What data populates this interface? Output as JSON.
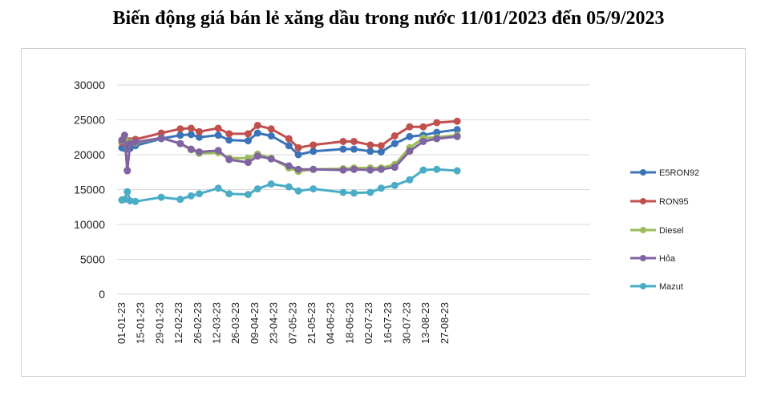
{
  "chart_data": {
    "type": "line",
    "title": "Biến động giá bán lẻ xăng dầu trong nước 11/01/2023 đến 05/9/2023",
    "xlabel": "",
    "ylabel": "",
    "ylim": [
      0,
      30000
    ],
    "yticks": [
      0,
      5000,
      10000,
      15000,
      20000,
      25000,
      30000
    ],
    "xticks": [
      "01-01-23",
      "15-01-23",
      "29-01-23",
      "12-02-23",
      "26-02-23",
      "12-03-23",
      "26-03-23",
      "09-04-23",
      "23-04-23",
      "07-05-23",
      "21-05-23",
      "04-06-23",
      "18-06-23",
      "02-07-23",
      "16-07-23",
      "30-07-23",
      "13-08-23",
      "27-08-23"
    ],
    "x": [
      "2023-01-01",
      "2023-01-03",
      "2023-01-05",
      "2023-01-07",
      "2023-01-11",
      "2023-01-30",
      "2023-02-13",
      "2023-02-21",
      "2023-02-27",
      "2023-03-13",
      "2023-03-21",
      "2023-04-04",
      "2023-04-11",
      "2023-04-21",
      "2023-05-04",
      "2023-05-11",
      "2023-05-22",
      "2023-06-13",
      "2023-06-21",
      "2023-07-03",
      "2023-07-11",
      "2023-07-21",
      "2023-08-01",
      "2023-08-11",
      "2023-08-21",
      "2023-09-05"
    ],
    "grid": true,
    "legend_position": "right",
    "series": [
      {
        "name": "E5RON92",
        "color": "#3b73b9",
        "values": [
          21000,
          20900,
          20800,
          20900,
          21300,
          22300,
          22800,
          22900,
          22500,
          22800,
          22100,
          22000,
          23100,
          22700,
          21300,
          20000,
          20500,
          20800,
          20800,
          20500,
          20400,
          21600,
          22600,
          22800,
          23200,
          23600
        ]
      },
      {
        "name": "RON95",
        "color": "#c0504d",
        "values": [
          21800,
          21900,
          21800,
          22000,
          22200,
          23100,
          23700,
          23800,
          23300,
          23800,
          23000,
          23000,
          24200,
          23700,
          22300,
          21000,
          21400,
          21900,
          21900,
          21400,
          21300,
          22700,
          24000,
          24000,
          24600,
          24800
        ]
      },
      {
        "name": "Diesel",
        "color": "#9bbb59",
        "values": [
          22000,
          22200,
          17800,
          21800,
          21700,
          22400,
          21600,
          20700,
          20200,
          20300,
          19500,
          19500,
          20100,
          19500,
          18100,
          17600,
          17900,
          18000,
          18100,
          18100,
          18100,
          18600,
          21000,
          22400,
          22500,
          22800
        ]
      },
      {
        "name": "Hỏa",
        "color": "#8064a2",
        "values": [
          22100,
          22800,
          17700,
          21600,
          21800,
          22400,
          21600,
          20800,
          20400,
          20600,
          19300,
          18900,
          19800,
          19400,
          18400,
          17900,
          17900,
          17800,
          17900,
          17800,
          17900,
          18200,
          20500,
          21900,
          22300,
          22600
        ]
      },
      {
        "name": "Mazut",
        "color": "#4bacc6",
        "values": [
          13500,
          13600,
          14700,
          13400,
          13300,
          13900,
          13600,
          14100,
          14400,
          15200,
          14400,
          14300,
          15100,
          15800,
          15400,
          14800,
          15100,
          14600,
          14500,
          14600,
          15200,
          15600,
          16400,
          17800,
          17900,
          17700
        ]
      }
    ]
  }
}
